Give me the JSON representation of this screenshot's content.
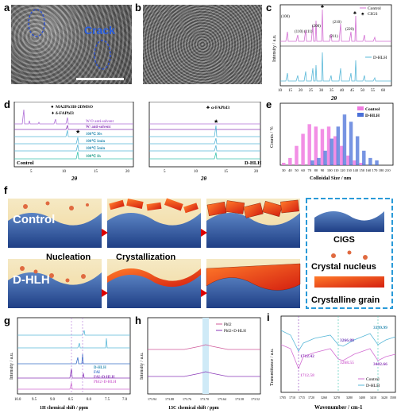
{
  "panels": {
    "a": {
      "letter": "a",
      "crack_label": "Crack"
    },
    "b": {
      "letter": "b"
    },
    "c": {
      "letter": "c",
      "legend": [
        "Control",
        "CIGS"
      ],
      "bottom_label": "D-HLH",
      "xlabel": "2θ",
      "ylabel": "Intensity / a.u.",
      "xticks": [
        "10",
        "15",
        "20",
        "25",
        "30",
        "35",
        "40",
        "45",
        "50",
        "55",
        "60"
      ],
      "peaks": [
        "(100)",
        "(110)",
        "(111)",
        "(200)",
        "(210)",
        "(211)",
        "(220)"
      ],
      "colors": {
        "control": "#d36fd3",
        "dhlh": "#5ab8d8"
      }
    },
    "d": {
      "letter": "d",
      "legend": [
        "MA2Pb3I8·2DMSO",
        "δ-FAPbI3"
      ],
      "right_legend": "α-FAPbI3",
      "traces": [
        "W/O anti-solvent",
        "W/ anti-solvent",
        "100℃ 30s",
        "100℃ 1min",
        "100℃ 5min",
        "100℃ 1h"
      ],
      "left_label": "Control",
      "right_label": "D-HLH",
      "xlabel_left": "2θ",
      "xlabel_right": "2θ",
      "xticks": [
        "5",
        "10",
        "15",
        "20"
      ]
    },
    "e": {
      "letter": "e",
      "legend": [
        "Control",
        "D-HLH"
      ],
      "xlabel": "Colloidal Size / nm",
      "ylabel": "Counts / %",
      "xticks": [
        "30",
        "40",
        "50",
        "60",
        "70",
        "80",
        "90",
        "100",
        "110",
        "120",
        "130",
        "140",
        "150",
        "160",
        "170",
        "180",
        "210"
      ]
    },
    "f": {
      "letter": "f",
      "row1": "Control",
      "row2": "D-HLH",
      "stage1": "Nucleation",
      "stage2": "Crystallization",
      "legend": [
        "CIGS",
        "Crystal nucleus",
        "Crystalline grain"
      ]
    },
    "g": {
      "letter": "g",
      "legend": [
        "D-HLH",
        "FAI",
        "FAI+D-HLH",
        "PbI2+D-HLH"
      ],
      "xlabel": "1H chemical shift / ppm",
      "ylabel": "Intensity / a.u.",
      "xticks": [
        "10.0",
        "9.5",
        "9.0",
        "8.5",
        "8.0",
        "7.5",
        "7.0"
      ]
    },
    "h": {
      "letter": "h",
      "legend": [
        "PbI2",
        "PbI2+D-HLH"
      ],
      "xlabel": "13C chemical shift / ppm",
      "ylabel": "Intensity / a.u.",
      "xticks": [
        "173.94",
        "173.88",
        "173.76",
        "173.70",
        "173.64",
        "173.58",
        "173.52"
      ]
    },
    "i": {
      "letter": "i",
      "legend": [
        "Control",
        "D-HLH"
      ],
      "xlabel": "Wavenumber / cm-1",
      "ylabel": "Transmittance / a.u.",
      "xticks": [
        "1705",
        "1710",
        "1715",
        "1720",
        "3260",
        "3270",
        "3280",
        "3400",
        "3410",
        "3420",
        "3500"
      ],
      "annotations": [
        "1712.42",
        "1712.58",
        "3266.88",
        "3268.55",
        "3399.99",
        "3402.66"
      ]
    }
  },
  "chart_data": [
    {
      "type": "bar",
      "panel": "e",
      "categories": [
        "30",
        "40",
        "50",
        "60",
        "70",
        "80",
        "90",
        "100",
        "110",
        "120",
        "130",
        "140",
        "150",
        "160",
        "170",
        "180",
        "210"
      ],
      "series": [
        {
          "name": "Control",
          "values": [
            1,
            3,
            8,
            13,
            17,
            16,
            15,
            16,
            12,
            8,
            4,
            2,
            1,
            0,
            0,
            0,
            0
          ]
        },
        {
          "name": "D-HLH",
          "values": [
            0,
            0,
            0,
            0,
            2,
            3,
            6,
            11,
            16,
            21,
            18,
            12,
            6,
            3,
            2,
            0,
            0
          ]
        }
      ],
      "xlabel": "Colloidal Size / nm",
      "ylabel": "Counts / %",
      "ylim": [
        0,
        25
      ]
    }
  ]
}
